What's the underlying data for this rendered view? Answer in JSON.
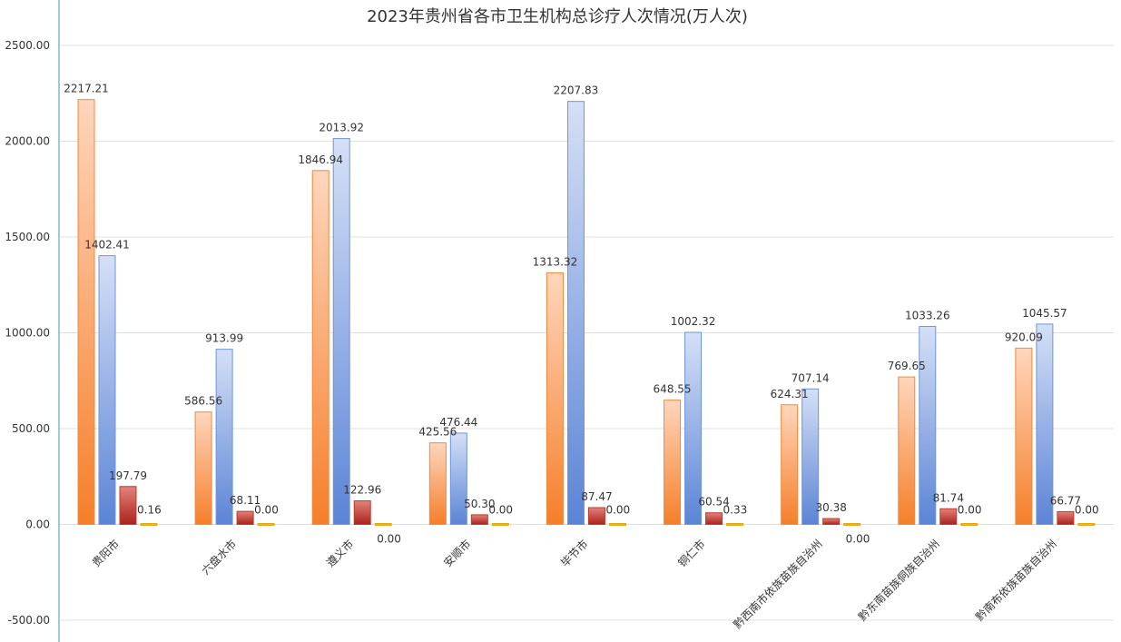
{
  "chart_data": {
    "type": "bar",
    "title": "2023年贵州省各市卫生机构总诊疗人次情况(万人次)",
    "categories": [
      "贵阳市",
      "六盘水市",
      "遵义市",
      "安顺市",
      "毕节市",
      "铜仁市",
      "黔西南市依族苗族自治州",
      "黔东南苗族侗族自治州",
      "黔南布依族苗族自治州"
    ],
    "series": [
      {
        "values": [
          2217.21,
          586.56,
          1846.94,
          425.56,
          1313.32,
          648.55,
          624.31,
          769.65,
          920.09
        ],
        "color": "#f4883a"
      },
      {
        "values": [
          1402.41,
          913.99,
          2013.92,
          476.44,
          2207.83,
          1002.32,
          707.14,
          1033.26,
          1045.57
        ],
        "color": "#6f95d9"
      },
      {
        "values": [
          197.79,
          68.11,
          122.96,
          50.3,
          87.47,
          60.54,
          30.38,
          81.74,
          66.77
        ],
        "color": "#c0392b"
      },
      {
        "values": [
          0.16,
          0.0,
          0.0,
          0.0,
          0.0,
          0.33,
          0.0,
          0.0,
          0.0
        ],
        "color": "#e6a817"
      }
    ],
    "value_labels": [
      [
        "2217.21",
        "586.56",
        "1846.94",
        "425.56",
        "1313.32",
        "648.55",
        "624.31",
        "769.65",
        "920.09"
      ],
      [
        "1402.41",
        "913.99",
        "2013.92",
        "476.44",
        "2207.83",
        "1002.32",
        "707.14",
        "1033.26",
        "1045.57"
      ],
      [
        "197.79",
        "68.11",
        "122.96",
        "50.30",
        "87.47",
        "60.54",
        "30.38",
        "81.74",
        "66.77"
      ],
      [
        "0.16",
        "0.00",
        "0.00",
        "0.00",
        "0.00",
        "0.33",
        "0.00",
        "0.00",
        "0.00"
      ]
    ],
    "ylim": [
      -500,
      2500
    ],
    "yticks": [
      2500,
      2000,
      1500,
      1000,
      500,
      0,
      -500
    ],
    "ytick_labels": [
      "2500.00",
      "2000.00",
      "1500.00",
      "1000.00",
      "500.00",
      "0.00",
      "-500.00"
    ],
    "grid": true,
    "legend": "none"
  }
}
